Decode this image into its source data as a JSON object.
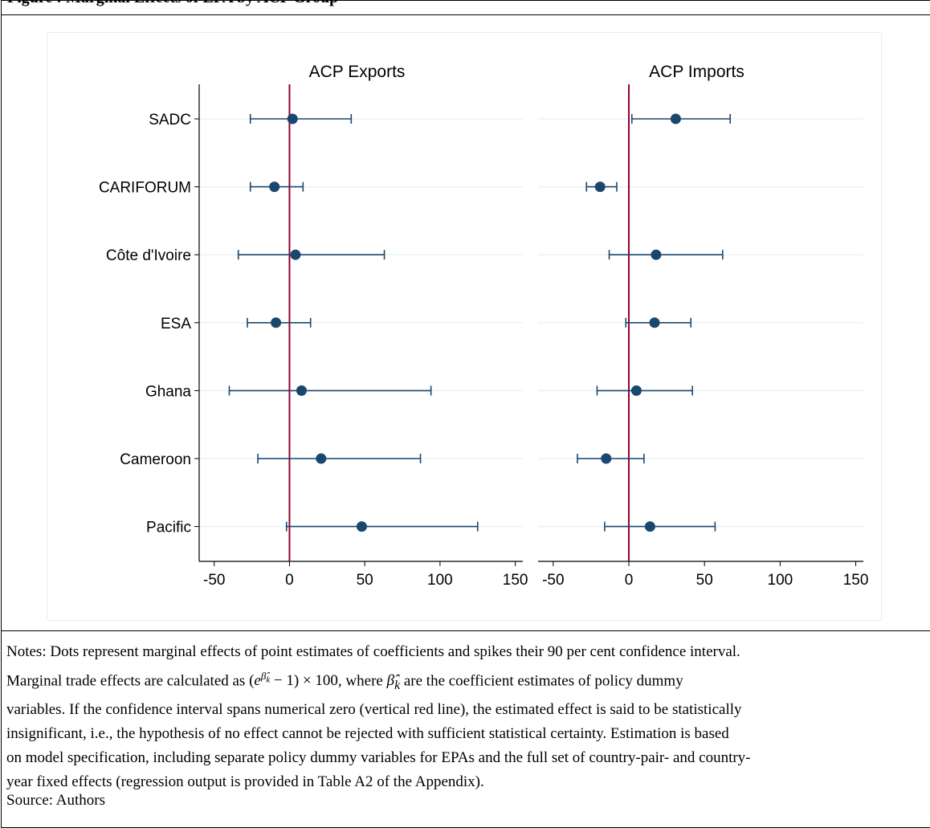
{
  "header_title": "Figure : Marginal Effects of EPA by ACP Group",
  "chart_data": {
    "type": "scatter",
    "categories": [
      "SADC",
      "CARIFORUM",
      "Côte d'Ivoire",
      "ESA",
      "Ghana",
      "Cameroon",
      "Pacific"
    ],
    "xlim": [
      -60,
      155
    ],
    "xticks": [
      -50,
      0,
      50,
      100,
      150
    ],
    "panels": [
      {
        "title": "ACP Exports",
        "points": [
          {
            "estimate": 2,
            "lower": -26,
            "upper": 41
          },
          {
            "estimate": -10,
            "lower": -26,
            "upper": 9
          },
          {
            "estimate": 4,
            "lower": -34,
            "upper": 63
          },
          {
            "estimate": -9,
            "lower": -28,
            "upper": 14
          },
          {
            "estimate": 8,
            "lower": -40,
            "upper": 94
          },
          {
            "estimate": 21,
            "lower": -21,
            "upper": 87
          },
          {
            "estimate": 48,
            "lower": -2,
            "upper": 125
          }
        ]
      },
      {
        "title": "ACP Imports",
        "points": [
          {
            "estimate": 31,
            "lower": 2,
            "upper": 67
          },
          {
            "estimate": -19,
            "lower": -28,
            "upper": -8
          },
          {
            "estimate": 18,
            "lower": -13,
            "upper": 62
          },
          {
            "estimate": 17,
            "lower": -2,
            "upper": 41
          },
          {
            "estimate": 5,
            "lower": -21,
            "upper": 42
          },
          {
            "estimate": -15,
            "lower": -34,
            "upper": 10
          },
          {
            "estimate": 14,
            "lower": -16,
            "upper": 57
          }
        ]
      }
    ],
    "reference_line": 0,
    "colors": {
      "marker": "#1a476f",
      "reference": "#90002d",
      "grid": "#eaf2f3"
    }
  },
  "notes": {
    "p1": "Notes: Dots represent marginal effects of point estimates of coefficients and spikes their 90 per cent confidence interval.",
    "p2a": "Marginal trade effects are calculated as ",
    "p2b": ", where ",
    "p2c": " are the coefficient estimates of policy dummy",
    "p3": "variables. If the confidence interval spans numerical zero (vertical red line), the estimated effect is said to be statistically",
    "p4": "insignificant, i.e., the hypothesis of no effect cannot be rejected with sufficient statistical certainty. Estimation is based",
    "p5": "on model specification, including separate policy dummy variables for EPAs and the full set of country-pair- and country-",
    "p6": "year fixed effects (regression output is provided in Table A2 of the Appendix)."
  },
  "source": "Source: Authors"
}
